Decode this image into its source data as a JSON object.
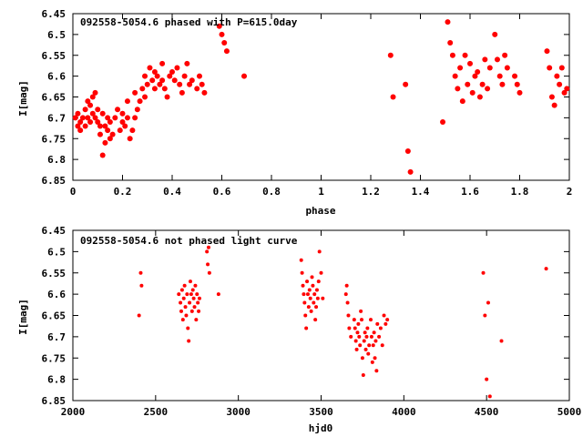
{
  "chart_data": [
    {
      "type": "scatter",
      "title": "092558-5054.6 phased with P=615.0day",
      "xlabel": "phase",
      "ylabel": "I[mag]",
      "xlim": [
        0,
        2
      ],
      "ylim": [
        6.45,
        6.85
      ],
      "y_inverted": true,
      "x_ticks": [
        0,
        0.2,
        0.4,
        0.6,
        0.8,
        1,
        1.2,
        1.4,
        1.6,
        1.8,
        2
      ],
      "x_tick_labels": [
        "0",
        "0.2",
        "0.4",
        "0.6",
        "0.8",
        "1",
        "1.2",
        "1.4",
        "1.6",
        "1.8",
        "2"
      ],
      "y_ticks": [
        6.45,
        6.5,
        6.55,
        6.6,
        6.65,
        6.7,
        6.75,
        6.8,
        6.85
      ],
      "y_tick_labels": [
        "6.45",
        "6.5",
        "6.55",
        "6.6",
        "6.65",
        "6.7",
        "6.75",
        "6.8",
        "6.85"
      ],
      "marker_color": "#ff0000",
      "grid": false,
      "series": [
        {
          "x": [
            0.01,
            0.02,
            0.02,
            0.03,
            0.03,
            0.04,
            0.05,
            0.05,
            0.06,
            0.06,
            0.07,
            0.07,
            0.08,
            0.08,
            0.09,
            0.09,
            0.1,
            0.1,
            0.11,
            0.11,
            0.12,
            0.12,
            0.13,
            0.13,
            0.14,
            0.14,
            0.15,
            0.15,
            0.16,
            0.17,
            0.18,
            0.19,
            0.2,
            0.2,
            0.21,
            0.22,
            0.22,
            0.23,
            0.24,
            0.25,
            0.25,
            0.26,
            0.27,
            0.28,
            0.29,
            0.29,
            0.3,
            0.31,
            0.32,
            0.33,
            0.33,
            0.34,
            0.35,
            0.36,
            0.36,
            0.37,
            0.38,
            0.39,
            0.4,
            0.41,
            0.42,
            0.43,
            0.44,
            0.45,
            0.46,
            0.47,
            0.48,
            0.5,
            0.51,
            0.52,
            0.53,
            0.59,
            0.6,
            0.61,
            0.62,
            0.69,
            1.28,
            1.29,
            1.34,
            1.35,
            1.36,
            1.49,
            1.51,
            1.52,
            1.53,
            1.54,
            1.55,
            1.56,
            1.57,
            1.58,
            1.59,
            1.6,
            1.61,
            1.62,
            1.63,
            1.64,
            1.65,
            1.66,
            1.67,
            1.68,
            1.7,
            1.71,
            1.72,
            1.73,
            1.74,
            1.75,
            1.78,
            1.79,
            1.8,
            1.91,
            1.92,
            1.93,
            1.94,
            1.95,
            1.96,
            1.97,
            1.98,
            1.99
          ],
          "y": [
            6.7,
            6.72,
            6.69,
            6.71,
            6.73,
            6.7,
            6.72,
            6.68,
            6.66,
            6.7,
            6.71,
            6.67,
            6.65,
            6.69,
            6.7,
            6.64,
            6.68,
            6.71,
            6.72,
            6.74,
            6.69,
            6.79,
            6.76,
            6.72,
            6.7,
            6.73,
            6.71,
            6.75,
            6.74,
            6.7,
            6.68,
            6.73,
            6.71,
            6.69,
            6.72,
            6.66,
            6.7,
            6.75,
            6.73,
            6.7,
            6.64,
            6.68,
            6.66,
            6.63,
            6.6,
            6.65,
            6.62,
            6.58,
            6.61,
            6.59,
            6.63,
            6.6,
            6.62,
            6.57,
            6.61,
            6.63,
            6.65,
            6.6,
            6.59,
            6.61,
            6.58,
            6.62,
            6.64,
            6.6,
            6.57,
            6.62,
            6.61,
            6.63,
            6.6,
            6.62,
            6.64,
            6.48,
            6.5,
            6.52,
            6.54,
            6.6,
            6.55,
            6.65,
            6.62,
            6.78,
            6.83,
            6.71,
            6.47,
            6.52,
            6.55,
            6.6,
            6.63,
            6.58,
            6.66,
            6.55,
            6.62,
            6.57,
            6.64,
            6.6,
            6.59,
            6.65,
            6.62,
            6.56,
            6.63,
            6.58,
            6.5,
            6.56,
            6.6,
            6.62,
            6.55,
            6.58,
            6.6,
            6.62,
            6.64,
            6.54,
            6.58,
            6.65,
            6.67,
            6.6,
            6.62,
            6.58,
            6.64,
            6.63
          ],
          "marker": "filled-circle"
        }
      ]
    },
    {
      "type": "scatter",
      "title": "092558-5054.6 not phased light curve",
      "xlabel": "hjd0",
      "ylabel": "I[mag]",
      "xlim": [
        2000,
        5000
      ],
      "ylim": [
        6.45,
        6.85
      ],
      "y_inverted": true,
      "x_ticks": [
        2000,
        2500,
        3000,
        3500,
        4000,
        4500,
        5000
      ],
      "x_tick_labels": [
        "2000",
        "2500",
        "3000",
        "3500",
        "4000",
        "4500",
        "5000"
      ],
      "y_ticks": [
        6.45,
        6.5,
        6.55,
        6.6,
        6.65,
        6.7,
        6.75,
        6.8,
        6.85
      ],
      "y_tick_labels": [
        "6.45",
        "6.5",
        "6.55",
        "6.6",
        "6.65",
        "6.7",
        "6.75",
        "6.8",
        "6.85"
      ],
      "marker_color": "#ff0000",
      "grid": false,
      "series": [
        {
          "x": [
            2400,
            2410,
            2415,
            2640,
            2650,
            2655,
            2660,
            2665,
            2670,
            2675,
            2680,
            2685,
            2690,
            2695,
            2700,
            2705,
            2710,
            2715,
            2720,
            2725,
            2730,
            2735,
            2740,
            2745,
            2750,
            2755,
            2760,
            2765,
            2810,
            2815,
            2820,
            2825,
            2880,
            3380,
            3385,
            3390,
            3395,
            3400,
            3405,
            3410,
            3415,
            3420,
            3425,
            3430,
            3435,
            3440,
            3445,
            3450,
            3455,
            3460,
            3465,
            3470,
            3475,
            3480,
            3485,
            3490,
            3500,
            3510,
            3650,
            3655,
            3660,
            3665,
            3670,
            3680,
            3700,
            3705,
            3710,
            3715,
            3720,
            3725,
            3730,
            3735,
            3740,
            3745,
            3750,
            3755,
            3760,
            3765,
            3770,
            3775,
            3780,
            3785,
            3790,
            3800,
            3805,
            3810,
            3815,
            3820,
            3825,
            3830,
            3835,
            3840,
            3850,
            3860,
            3870,
            3880,
            3890,
            3900,
            4480,
            4490,
            4500,
            4510,
            4520,
            4590,
            4860
          ],
          "y": [
            6.65,
            6.55,
            6.58,
            6.6,
            6.62,
            6.64,
            6.59,
            6.66,
            6.61,
            6.58,
            6.63,
            6.65,
            6.6,
            6.68,
            6.71,
            6.62,
            6.57,
            6.6,
            6.64,
            6.59,
            6.61,
            6.63,
            6.58,
            6.66,
            6.6,
            6.62,
            6.64,
            6.61,
            6.5,
            6.53,
            6.49,
            6.55,
            6.6,
            6.52,
            6.55,
            6.58,
            6.6,
            6.62,
            6.65,
            6.68,
            6.57,
            6.6,
            6.63,
            6.59,
            6.61,
            6.64,
            6.56,
            6.58,
            6.62,
            6.6,
            6.66,
            6.63,
            6.59,
            6.61,
            6.57,
            6.5,
            6.55,
            6.61,
            6.6,
            6.58,
            6.62,
            6.65,
            6.68,
            6.7,
            6.66,
            6.68,
            6.71,
            6.73,
            6.69,
            6.67,
            6.7,
            6.72,
            6.64,
            6.66,
            6.75,
            6.79,
            6.71,
            6.69,
            6.73,
            6.7,
            6.68,
            6.74,
            6.72,
            6.66,
            6.7,
            6.76,
            6.72,
            6.69,
            6.75,
            6.71,
            6.78,
            6.67,
            6.7,
            6.68,
            6.72,
            6.65,
            6.67,
            6.66,
            6.55,
            6.65,
            6.8,
            6.62,
            6.84,
            6.71,
            6.54
          ],
          "marker": "filled-circle"
        }
      ]
    }
  ]
}
